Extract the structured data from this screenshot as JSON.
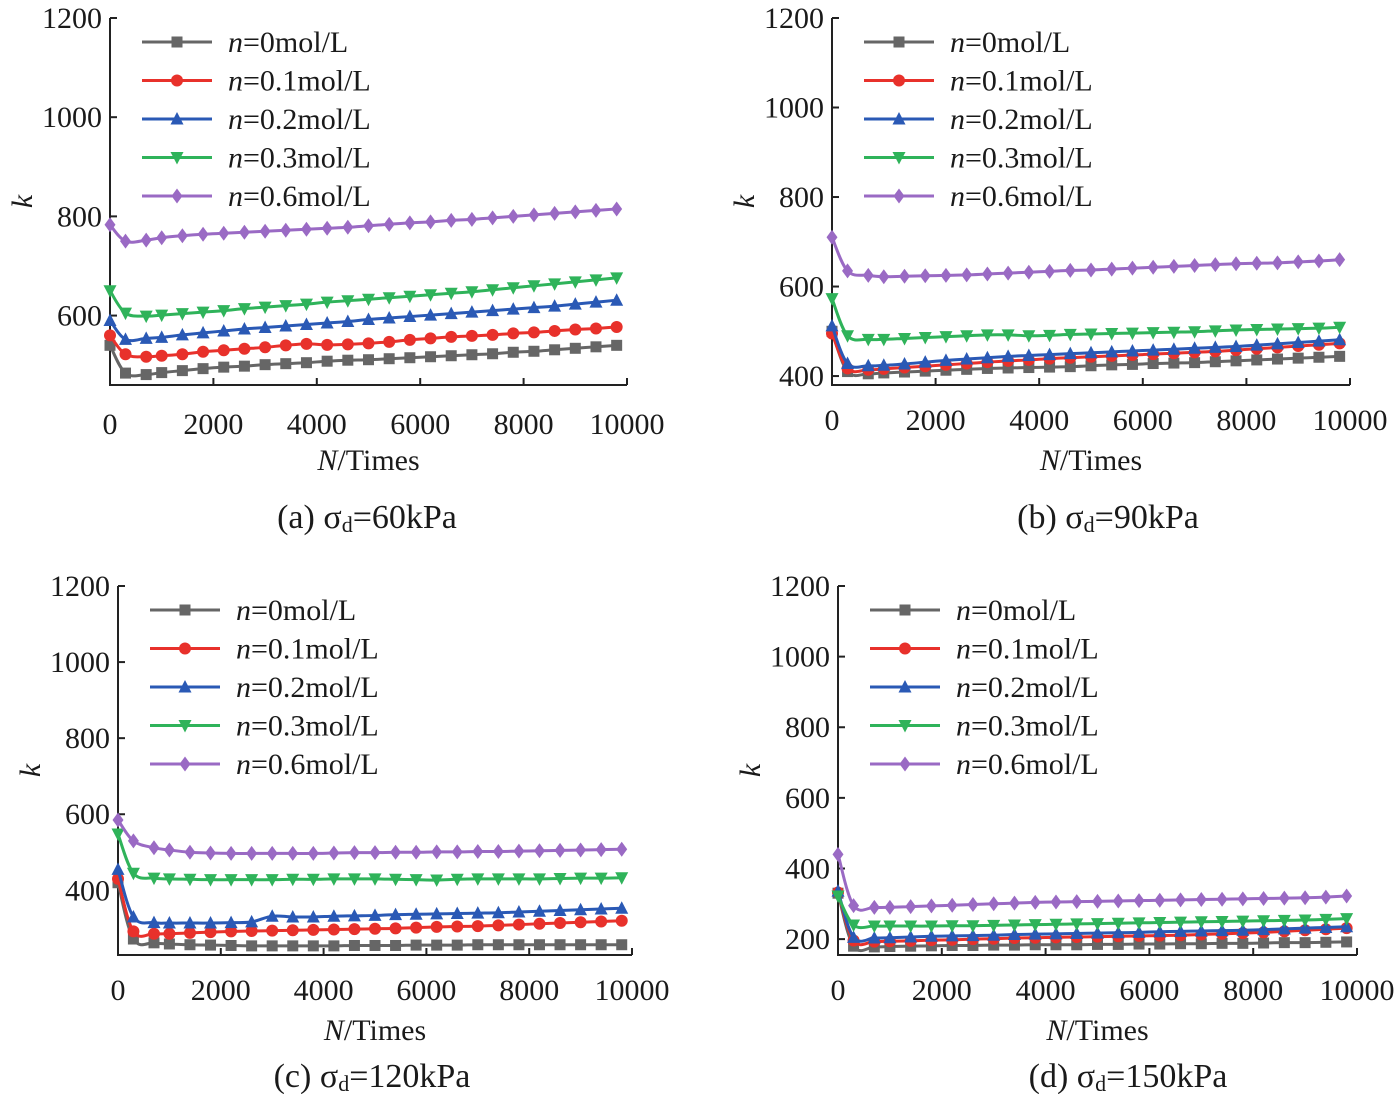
{
  "colors": {
    "n0": "#666666",
    "n01": "#e8312b",
    "n02": "#2a59b5",
    "n03": "#2fb35a",
    "n06": "#9a6ac4"
  },
  "chart_data": [
    {
      "type": "line",
      "caption": "(a) σd=60kPa",
      "caption_main": "(a) σ",
      "caption_sub": "d",
      "caption_tail": "=60kPa",
      "xlabel": "N/Times",
      "xlabel_italic": "N",
      "xlabel_rest": "/Times",
      "ylabel": "k",
      "xlim": [
        0,
        10000
      ],
      "ylim": [
        460,
        1200
      ],
      "xticks": [
        0,
        2000,
        4000,
        6000,
        8000,
        10000
      ],
      "yticks": [
        600,
        800,
        1000,
        1200
      ],
      "legend_position": "top-left",
      "x": [
        0,
        300,
        700,
        1000,
        1400,
        1800,
        2200,
        2600,
        3000,
        3400,
        3800,
        4200,
        4600,
        5000,
        5400,
        5800,
        6200,
        6600,
        7000,
        7400,
        7800,
        8200,
        8600,
        9000,
        9400,
        9800
      ],
      "series": [
        {
          "name": "n=0mol/L",
          "n_value": "=0mol/L",
          "marker": "square",
          "color_key": "n0",
          "values": [
            540,
            484,
            481,
            485,
            489,
            493,
            496,
            498,
            501,
            503,
            505,
            508,
            510,
            511,
            513,
            515,
            517,
            519,
            521,
            523,
            526,
            528,
            531,
            534,
            537,
            540
          ]
        },
        {
          "name": "n=0.1mol/L",
          "n_value": "=0.1mol/L",
          "marker": "circle",
          "color_key": "n01",
          "values": [
            560,
            522,
            517,
            519,
            522,
            527,
            530,
            533,
            536,
            540,
            543,
            541,
            542,
            544,
            547,
            551,
            554,
            557,
            559,
            561,
            564,
            566,
            569,
            572,
            574,
            577
          ]
        },
        {
          "name": "n=0.2mol/L",
          "n_value": "=0.2mol/L",
          "marker": "triangle-up",
          "color_key": "n02",
          "values": [
            590,
            552,
            554,
            556,
            561,
            565,
            569,
            573,
            576,
            579,
            582,
            585,
            588,
            592,
            595,
            598,
            601,
            604,
            607,
            610,
            613,
            616,
            619,
            623,
            627,
            631
          ]
        },
        {
          "name": "n=0.3mol/L",
          "n_value": "=0.3mol/L",
          "marker": "triangle-down",
          "color_key": "n03",
          "values": [
            650,
            605,
            599,
            601,
            604,
            607,
            610,
            614,
            617,
            620,
            623,
            627,
            630,
            633,
            636,
            639,
            642,
            645,
            648,
            652,
            656,
            660,
            664,
            668,
            672,
            676
          ]
        },
        {
          "name": "n=0.6mol/L",
          "n_value": "=0.6mol/L",
          "marker": "diamond",
          "color_key": "n06",
          "values": [
            783,
            750,
            752,
            757,
            761,
            764,
            766,
            768,
            770,
            772,
            774,
            776,
            778,
            781,
            784,
            787,
            789,
            792,
            794,
            797,
            800,
            803,
            806,
            809,
            812,
            815
          ]
        }
      ]
    },
    {
      "type": "line",
      "caption": "(b) σd=90kPa",
      "caption_main": "(b) σ",
      "caption_sub": "d",
      "caption_tail": "=90kPa",
      "xlabel": "N/Times",
      "xlabel_italic": "N",
      "xlabel_rest": "/Times",
      "ylabel": "k",
      "xlim": [
        0,
        10000
      ],
      "ylim": [
        380,
        1200
      ],
      "xticks": [
        0,
        2000,
        4000,
        6000,
        8000,
        10000
      ],
      "yticks": [
        400,
        600,
        800,
        1000,
        1200
      ],
      "legend_position": "top-left",
      "x": [
        0,
        300,
        700,
        1000,
        1400,
        1800,
        2200,
        2600,
        3000,
        3400,
        3800,
        4200,
        4600,
        5000,
        5400,
        5800,
        6200,
        6600,
        7000,
        7400,
        7800,
        8200,
        8600,
        9000,
        9400,
        9800
      ],
      "series": [
        {
          "name": "n=0mol/L",
          "n_value": "=0mol/L",
          "marker": "square",
          "color_key": "n0",
          "values": [
            500,
            410,
            405,
            407,
            409,
            411,
            413,
            415,
            417,
            418,
            419,
            420,
            421,
            423,
            425,
            426,
            428,
            429,
            430,
            432,
            434,
            436,
            438,
            440,
            442,
            444
          ]
        },
        {
          "name": "n=0.1mol/L",
          "n_value": "=0.1mol/L",
          "marker": "circle",
          "color_key": "n01",
          "values": [
            495,
            417,
            414,
            416,
            419,
            422,
            425,
            428,
            431,
            434,
            436,
            439,
            441,
            443,
            445,
            447,
            449,
            451,
            453,
            455,
            458,
            461,
            464,
            467,
            470,
            473
          ]
        },
        {
          "name": "n=0.2mol/L",
          "n_value": "=0.2mol/L",
          "marker": "triangle-up",
          "color_key": "n02",
          "values": [
            512,
            428,
            423,
            424,
            427,
            431,
            435,
            438,
            441,
            444,
            446,
            448,
            450,
            452,
            454,
            456,
            458,
            460,
            462,
            464,
            466,
            469,
            472,
            475,
            478,
            481
          ]
        },
        {
          "name": "n=0.3mol/L",
          "n_value": "=0.3mol/L",
          "marker": "triangle-down",
          "color_key": "n03",
          "values": [
            573,
            490,
            482,
            482,
            484,
            486,
            488,
            490,
            492,
            492,
            490,
            491,
            493,
            494,
            495,
            496,
            497,
            498,
            499,
            501,
            503,
            504,
            505,
            506,
            507,
            509
          ]
        },
        {
          "name": "n=0.6mol/L",
          "n_value": "=0.6mol/L",
          "marker": "diamond",
          "color_key": "n06",
          "values": [
            710,
            635,
            625,
            622,
            623,
            624,
            625,
            626,
            628,
            630,
            632,
            634,
            636,
            637,
            639,
            641,
            643,
            645,
            647,
            649,
            651,
            652,
            653,
            655,
            657,
            660
          ]
        }
      ]
    },
    {
      "type": "line",
      "caption": "(c) σd=120kPa",
      "caption_main": "(c) σ",
      "caption_sub": "d",
      "caption_tail": "=120kPa",
      "xlabel": "N/Times",
      "xlabel_italic": "N",
      "xlabel_rest": "/Times",
      "ylabel": "k",
      "xlim": [
        0,
        10000
      ],
      "ylim": [
        230,
        1200
      ],
      "xticks": [
        0,
        2000,
        4000,
        6000,
        8000,
        10000
      ],
      "yticks": [
        400,
        600,
        800,
        1000,
        1200
      ],
      "legend_position": "top-left",
      "x": [
        0,
        300,
        700,
        1000,
        1400,
        1800,
        2200,
        2600,
        3000,
        3400,
        3800,
        4200,
        4600,
        5000,
        5400,
        5800,
        6200,
        6600,
        7000,
        7400,
        7800,
        8200,
        8600,
        9000,
        9400,
        9800
      ],
      "series": [
        {
          "name": "n=0mol/L",
          "n_value": "=0mol/L",
          "marker": "square",
          "color_key": "n0",
          "values": [
            420,
            272,
            262,
            259,
            257,
            256,
            255,
            254,
            254,
            254,
            254,
            254,
            255,
            255,
            255,
            256,
            256,
            256,
            257,
            257,
            257,
            257,
            257,
            257,
            257,
            257
          ]
        },
        {
          "name": "n=0.1mol/L",
          "n_value": "=0.1mol/L",
          "marker": "circle",
          "color_key": "n01",
          "values": [
            430,
            292,
            286,
            286,
            288,
            290,
            292,
            293,
            294,
            295,
            296,
            297,
            298,
            299,
            300,
            302,
            304,
            305,
            306,
            308,
            310,
            312,
            314,
            316,
            318,
            320
          ]
        },
        {
          "name": "n=0.2mol/L",
          "n_value": "=0.2mol/L",
          "marker": "triangle-up",
          "color_key": "n02",
          "values": [
            455,
            330,
            315,
            314,
            314,
            314,
            315,
            317,
            332,
            330,
            330,
            332,
            333,
            334,
            336,
            337,
            338,
            339,
            340,
            341,
            343,
            345,
            347,
            349,
            351,
            353
          ]
        },
        {
          "name": "n=0.3mol/L",
          "n_value": "=0.3mol/L",
          "marker": "triangle-down",
          "color_key": "n03",
          "values": [
            548,
            445,
            432,
            430,
            429,
            428,
            428,
            428,
            428,
            429,
            429,
            430,
            430,
            430,
            429,
            428,
            427,
            429,
            430,
            430,
            430,
            430,
            431,
            432,
            432,
            433
          ]
        },
        {
          "name": "n=0.6mol/L",
          "n_value": "=0.6mol/L",
          "marker": "diamond",
          "color_key": "n06",
          "values": [
            585,
            530,
            512,
            506,
            500,
            498,
            497,
            497,
            497,
            497,
            497,
            498,
            499,
            499,
            500,
            500,
            501,
            501,
            502,
            502,
            503,
            504,
            505,
            506,
            507,
            508
          ]
        }
      ]
    },
    {
      "type": "line",
      "caption": "(d) σd=150kPa",
      "caption_main": "(d) σ",
      "caption_sub": "d",
      "caption_tail": "=150kPa",
      "xlabel": "N/Times",
      "xlabel_italic": "N",
      "xlabel_rest": "/Times",
      "ylabel": "k",
      "xlim": [
        0,
        10000
      ],
      "ylim": [
        155,
        1200
      ],
      "xticks": [
        0,
        2000,
        4000,
        6000,
        8000,
        10000
      ],
      "yticks": [
        200,
        400,
        600,
        800,
        1000,
        1200
      ],
      "legend_position": "top-left",
      "x": [
        0,
        300,
        700,
        1000,
        1400,
        1800,
        2200,
        2600,
        3000,
        3400,
        3800,
        4200,
        4600,
        5000,
        5400,
        5800,
        6200,
        6600,
        7000,
        7400,
        7800,
        8200,
        8600,
        9000,
        9400,
        9800
      ],
      "series": [
        {
          "name": "n=0mol/L",
          "n_value": "=0mol/L",
          "marker": "square",
          "color_key": "n0",
          "values": [
            330,
            180,
            178,
            179,
            180,
            181,
            182,
            182,
            183,
            183,
            184,
            184,
            184,
            185,
            185,
            186,
            186,
            187,
            187,
            188,
            188,
            189,
            190,
            190,
            191,
            192
          ]
        },
        {
          "name": "n=0.1mol/L",
          "n_value": "=0.1mol/L",
          "marker": "circle",
          "color_key": "n01",
          "values": [
            332,
            196,
            193,
            194,
            195,
            197,
            198,
            200,
            201,
            203,
            204,
            205,
            206,
            207,
            208,
            209,
            210,
            211,
            213,
            215,
            217,
            219,
            222,
            225,
            228,
            231
          ]
        },
        {
          "name": "n=0.2mol/L",
          "n_value": "=0.2mol/L",
          "marker": "triangle-up",
          "color_key": "n02",
          "values": [
            336,
            205,
            203,
            204,
            206,
            208,
            209,
            210,
            211,
            213,
            214,
            215,
            216,
            217,
            218,
            219,
            221,
            222,
            223,
            224,
            225,
            227,
            229,
            231,
            233,
            235
          ]
        },
        {
          "name": "n=0.3mol/L",
          "n_value": "=0.3mol/L",
          "marker": "triangle-down",
          "color_key": "n03",
          "values": [
            322,
            240,
            237,
            237,
            237,
            237,
            238,
            238,
            239,
            240,
            241,
            242,
            243,
            244,
            245,
            246,
            247,
            248,
            249,
            250,
            251,
            252,
            253,
            254,
            256,
            258
          ]
        },
        {
          "name": "n=0.6mol/L",
          "n_value": "=0.6mol/L",
          "marker": "diamond",
          "color_key": "n06",
          "values": [
            440,
            295,
            290,
            290,
            292,
            294,
            296,
            298,
            300,
            302,
            304,
            305,
            306,
            307,
            308,
            309,
            310,
            311,
            312,
            313,
            314,
            315,
            316,
            317,
            319,
            322
          ]
        }
      ]
    }
  ]
}
